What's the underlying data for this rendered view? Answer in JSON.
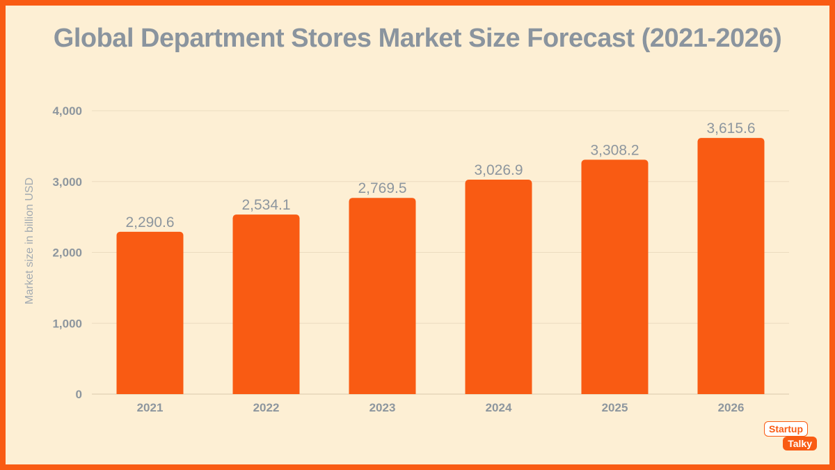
{
  "chart_data": {
    "type": "bar",
    "title": "Global Department Stores Market Size Forecast (2021-2026)",
    "ylabel": "Market size in billion  USD",
    "xlabel": "",
    "categories": [
      "2021",
      "2022",
      "2023",
      "2024",
      "2025",
      "2026"
    ],
    "values": [
      2290.6,
      2534.1,
      2769.5,
      3026.9,
      3308.2,
      3615.6
    ],
    "value_labels": [
      "2,290.6",
      "2,534.1",
      "2,769.5",
      "3,026.9",
      "3,308.2",
      "3,615.6"
    ],
    "ylim": [
      0,
      4000
    ],
    "yticks": [
      0,
      1000,
      2000,
      3000,
      4000
    ],
    "ytick_labels": [
      "0",
      "1,000",
      "2,000",
      "3,000",
      "4,000"
    ],
    "grid": true,
    "legend": "none"
  },
  "colors": {
    "bar": "#f95b13",
    "background": "#fdefd4",
    "border": "#f95b13",
    "text": "#8d969e",
    "grid": "#ecdcc0"
  },
  "logo": {
    "line1": "Startup",
    "line2": "Talky"
  }
}
